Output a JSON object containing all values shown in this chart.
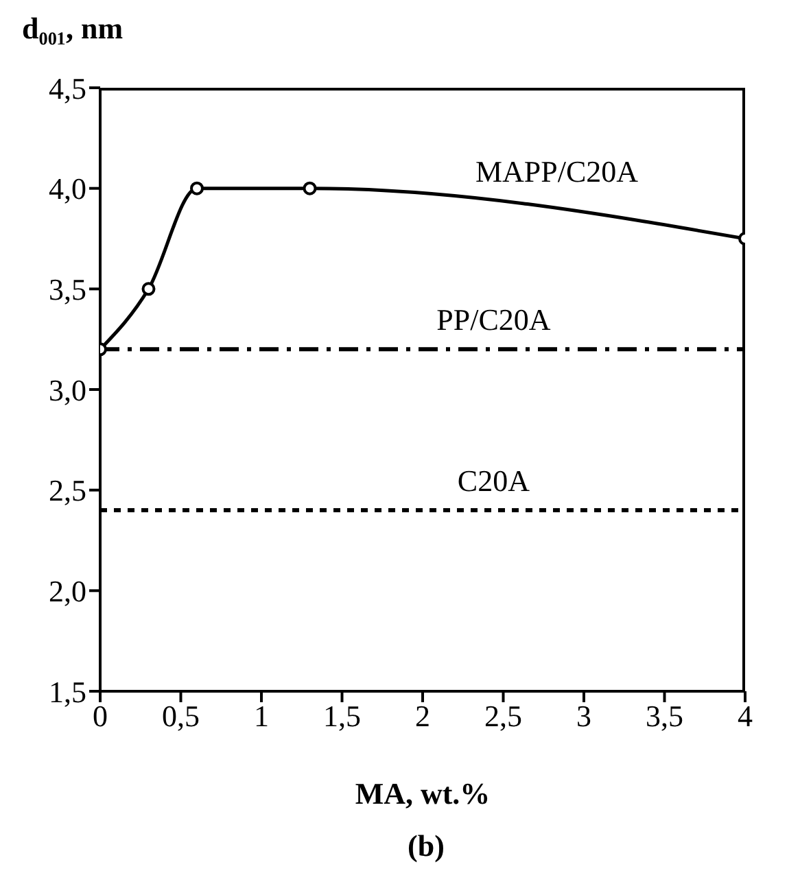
{
  "chart_data": {
    "type": "line",
    "ylabel": "d₀₀₁, nm",
    "xlabel": "MA, wt.%",
    "annotations": [
      "(b)"
    ],
    "series": [
      {
        "name": "MAPP/C20A",
        "color": "#000000",
        "x": [
          0,
          0.3,
          0.6,
          1.3,
          4
        ],
        "values": [
          3.2,
          3.5,
          4.0,
          4.0,
          3.75
        ]
      }
    ],
    "ref_lines": [
      {
        "axis": "y",
        "value": 3.2,
        "label": "PP/C20A",
        "line_style": "dashed",
        "color": "#000000"
      },
      {
        "axis": "y",
        "value": 2.4,
        "label": "C20A",
        "line_style": "dotted",
        "color": "#000000"
      }
    ],
    "xlim": [
      0,
      4
    ],
    "xticks": [
      0,
      {
        "value": 0.5,
        "label": "0,5"
      },
      1,
      {
        "value": 1.5,
        "label": "1,5"
      },
      2,
      {
        "value": 2.5,
        "label": "2,5"
      },
      3,
      {
        "value": 3.5,
        "label": "3,5"
      },
      4
    ],
    "ylim": [
      1.5,
      4.5
    ],
    "yticks": [
      {
        "value": 1.5,
        "label": "1,5"
      },
      {
        "value": 2,
        "label": "2,0"
      },
      {
        "value": 2.5,
        "label": "2,5"
      },
      {
        "value": 3,
        "label": "3,0"
      },
      {
        "value": 3.5,
        "label": "3,5"
      },
      {
        "value": 4,
        "label": "4,0"
      },
      {
        "value": 4.5,
        "label": "4,5"
      }
    ],
    "grid": false,
    "legend": false,
    "marker": "circle",
    "line_style": "solid"
  }
}
